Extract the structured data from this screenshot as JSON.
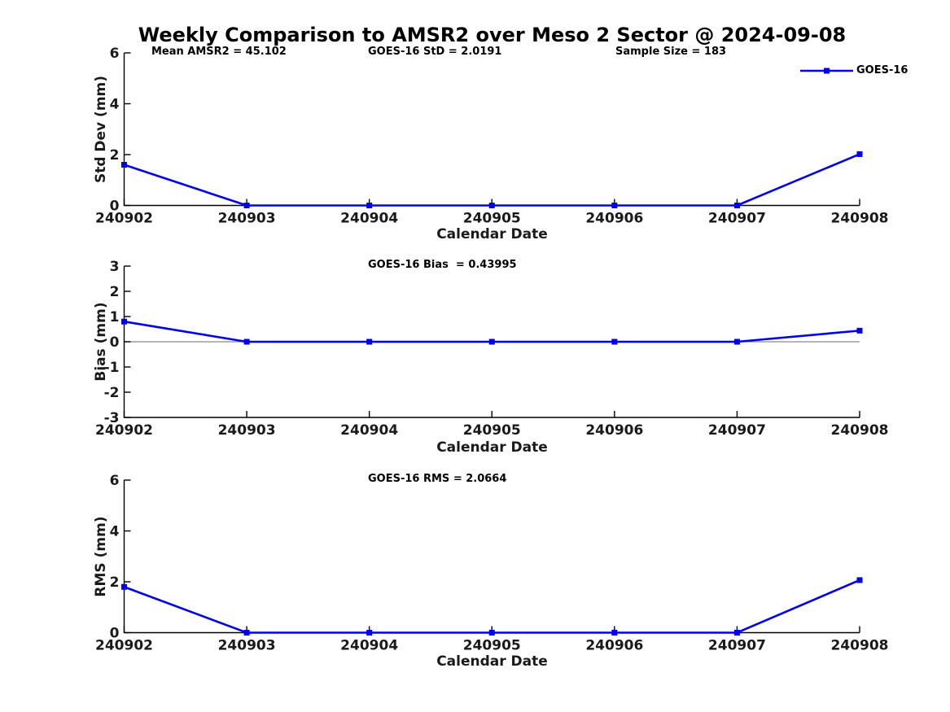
{
  "figure": {
    "title": "Weekly Comparison to AMSR2 over Meso 2 Sector @ 2024-09-08",
    "xlabel": "Calendar Date",
    "legend": {
      "label": "GOES-16",
      "position": "upper-right",
      "box": false
    },
    "colors": {
      "series": "#0000EE",
      "axis": "#000000",
      "tick_label": "#1a1a1a",
      "zero_line": "#8c8c8c",
      "background": "#ffffff"
    }
  },
  "chart_data": [
    {
      "type": "line",
      "ylabel": "Std Dev (mm)",
      "ylim": [
        0,
        6
      ],
      "yticks": [
        0,
        2,
        4,
        6
      ],
      "annotations": [
        "Mean AMSR2 = 45.102",
        "GOES-16 StD = 2.0191",
        "Sample Size = 183"
      ],
      "categories": [
        "240902",
        "240903",
        "240904",
        "240905",
        "240906",
        "240907",
        "240908"
      ],
      "grid": false,
      "zero_line": false,
      "series": [
        {
          "name": "GOES-16",
          "color": "#0000EE",
          "marker": "square",
          "values": [
            1.6,
            0,
            0,
            0,
            0,
            0,
            2.0191
          ]
        }
      ]
    },
    {
      "type": "line",
      "ylabel": "Bias (mm)",
      "ylim": [
        -3,
        3
      ],
      "yticks": [
        3,
        2,
        1,
        0,
        -1,
        -2,
        -3
      ],
      "annotations": [
        "GOES-16 Bias  = 0.43995"
      ],
      "categories": [
        "240902",
        "240903",
        "240904",
        "240905",
        "240906",
        "240907",
        "240908"
      ],
      "grid": false,
      "zero_line": true,
      "series": [
        {
          "name": "GOES-16",
          "color": "#0000EE",
          "marker": "square",
          "values": [
            0.8,
            0,
            0,
            0,
            0,
            0,
            0.43995
          ]
        }
      ]
    },
    {
      "type": "line",
      "ylabel": "RMS (mm)",
      "ylim": [
        0,
        6
      ],
      "yticks": [
        0,
        2,
        4,
        6
      ],
      "annotations": [
        "GOES-16 RMS = 2.0664"
      ],
      "categories": [
        "240902",
        "240903",
        "240904",
        "240905",
        "240906",
        "240907",
        "240908"
      ],
      "grid": false,
      "zero_line": false,
      "series": [
        {
          "name": "GOES-16",
          "color": "#0000EE",
          "marker": "square",
          "values": [
            1.8,
            0,
            0,
            0,
            0,
            0,
            2.0664
          ]
        }
      ]
    }
  ]
}
